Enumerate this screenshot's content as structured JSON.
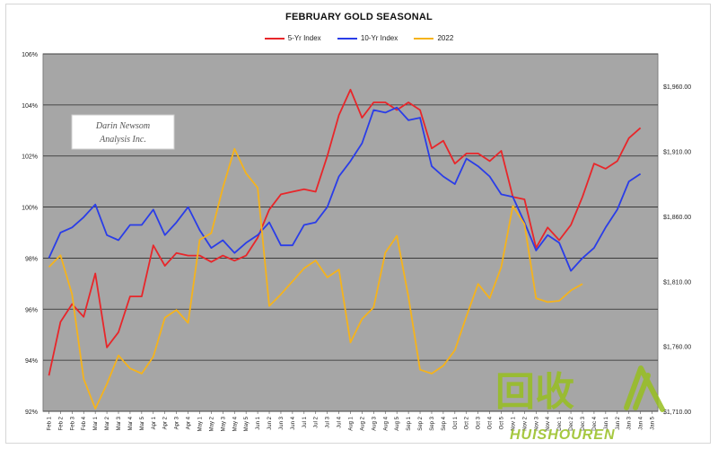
{
  "chart_data": {
    "type": "line",
    "title": "FEBRUARY GOLD SEASONAL",
    "legend_position": "top-center",
    "grid": true,
    "categories": [
      "Feb 1",
      "Feb 2",
      "Feb 3",
      "Feb 4",
      "Mar 1",
      "Mar 2",
      "Mar 3",
      "Mar 4",
      "Mar 5",
      "Apr 1",
      "Apr 2",
      "Apr 3",
      "Apr 4",
      "May 1",
      "May 2",
      "May 3",
      "May 4",
      "May 5",
      "Jun 1",
      "Jun 2",
      "Jun 3",
      "Jun 4",
      "Jul 1",
      "Jul 2",
      "Jul 3",
      "Jul 4",
      "Aug 1",
      "Aug 2",
      "Aug 3",
      "Aug 4",
      "Aug 5",
      "Sep 1",
      "Sep 2",
      "Sep 3",
      "Sep 4",
      "Oct 1",
      "Oct 2",
      "Oct 3",
      "Oct 4",
      "Oct 5",
      "Nov 1",
      "Nov 2",
      "Nov 3",
      "Nov 4",
      "Dec 1",
      "Dec 2",
      "Dec 3",
      "Dec 4",
      "Jan 1",
      "Jan 2",
      "Jan 3",
      "Jan 4",
      "Jan 5"
    ],
    "y_left": {
      "ticks": [
        "92%",
        "94%",
        "96%",
        "98%",
        "100%",
        "102%",
        "104%",
        "106%"
      ],
      "range": [
        92,
        106
      ]
    },
    "y_right": {
      "ticks": [
        "$1,710.00",
        "$1,760.00",
        "$1,810.00",
        "$1,860.00",
        "$1,910.00",
        "$1,960.00"
      ],
      "range": [
        1710,
        1985
      ]
    },
    "series": [
      {
        "name": "5-Yr Index",
        "color": "#e8262a",
        "axis": "left",
        "values": [
          93.4,
          95.5,
          96.2,
          95.7,
          97.4,
          94.5,
          95.1,
          96.5,
          96.5,
          98.5,
          97.7,
          98.2,
          98.1,
          98.1,
          97.85,
          98.1,
          97.9,
          98.1,
          98.8,
          99.9,
          100.5,
          100.6,
          100.7,
          100.6,
          102.0,
          103.6,
          104.6,
          103.5,
          104.1,
          104.1,
          103.8,
          104.1,
          103.8,
          102.3,
          102.6,
          101.7,
          102.1,
          102.1,
          101.8,
          102.2,
          100.4,
          100.3,
          98.4,
          99.2,
          98.7,
          99.3,
          100.4,
          101.7,
          101.5,
          101.8,
          102.7,
          103.1,
          null
        ]
      },
      {
        "name": "10-Yr Index",
        "color": "#2a3de8",
        "axis": "left",
        "values": [
          98.0,
          99.0,
          99.2,
          99.6,
          100.1,
          98.9,
          98.7,
          99.3,
          99.3,
          99.9,
          98.9,
          99.4,
          100.0,
          99.1,
          98.4,
          98.7,
          98.2,
          98.6,
          98.9,
          99.4,
          98.5,
          98.5,
          99.3,
          99.4,
          100.0,
          101.2,
          101.8,
          102.5,
          103.8,
          103.7,
          103.9,
          103.4,
          103.5,
          101.6,
          101.2,
          100.9,
          101.9,
          101.6,
          101.2,
          100.5,
          100.4,
          99.4,
          98.3,
          98.9,
          98.6,
          97.5,
          98.0,
          98.4,
          99.2,
          99.9,
          101.0,
          101.3,
          null
        ]
      },
      {
        "name": "2022",
        "color": "#f5b31c",
        "axis": "right",
        "values": [
          1821,
          1830,
          1800,
          1735,
          1712,
          1731,
          1753,
          1743,
          1739,
          1752,
          1782,
          1788,
          1778,
          1842,
          1847,
          1882,
          1912,
          1893,
          1882,
          1791,
          1800,
          1810,
          1820,
          1826,
          1813,
          1819,
          1763,
          1781,
          1790,
          1832,
          1845,
          1798,
          1742,
          1739,
          1745,
          1757,
          1783,
          1808,
          1797,
          1821,
          1868,
          1854,
          1797,
          1794,
          1795,
          1803,
          1808,
          null,
          null,
          null,
          null,
          null,
          null
        ]
      }
    ]
  },
  "watermark": {
    "text": "HUISHOUREN",
    "glyphs": "回收"
  },
  "logo": {
    "line1": "Darin Newsom",
    "line2": "Analysis Inc."
  }
}
